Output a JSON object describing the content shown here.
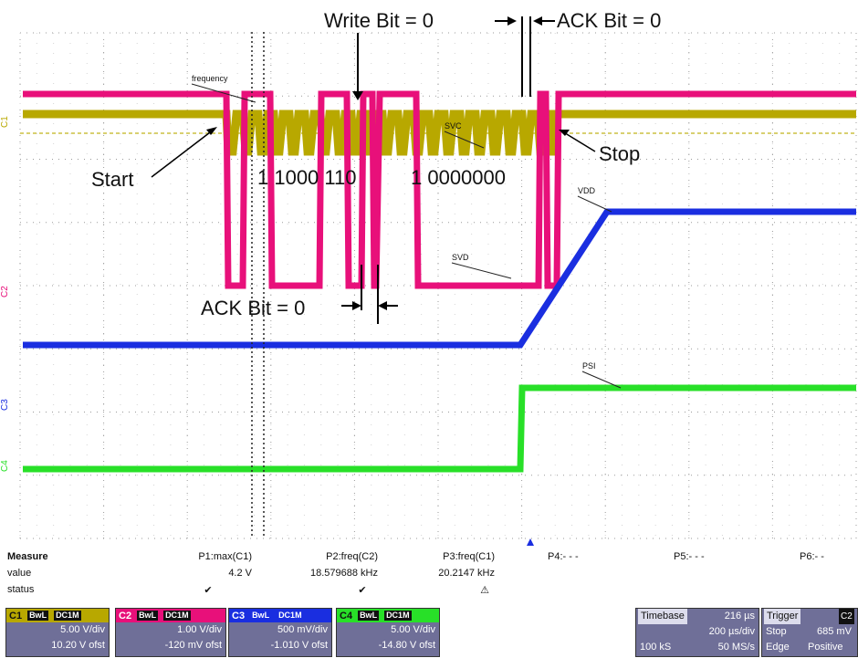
{
  "colors": {
    "c1": "#b8a800",
    "c2": "#e8107a",
    "c3": "#1a2ee0",
    "c4": "#28e028",
    "grid": "#9a9a9a",
    "panel": "#6f6f98"
  },
  "annotations": {
    "write_bit": "Write Bit = 0",
    "ack_bit_top": "ACK Bit = 0",
    "ack_bit_mid": "ACK Bit = 0",
    "start": "Start",
    "stop": "Stop",
    "address_bits": "1 1000 110",
    "data_bits": "1 0000000",
    "frequency": "frequency",
    "svc": "SVC",
    "svd": "SVD",
    "vdd": "VDD",
    "psi": "PSI"
  },
  "channel_markers": {
    "c1": "C1",
    "c2": "C2",
    "c3": "C3",
    "c4": "C4"
  },
  "measure": {
    "title": "Measure",
    "row_value": "value",
    "row_status": "status",
    "columns": [
      {
        "name": "P1:max(C1)",
        "value": "4.2 V",
        "status": "✔"
      },
      {
        "name": "P2:freq(C2)",
        "value": "18.579688 kHz",
        "status": "✔"
      },
      {
        "name": "P3:freq(C1)",
        "value": "20.2147 kHz",
        "status": "⚠"
      },
      {
        "name": "P4:- - -",
        "value": "",
        "status": ""
      },
      {
        "name": "P5:- - -",
        "value": "",
        "status": ""
      },
      {
        "name": "P6:- -",
        "value": "",
        "status": ""
      }
    ]
  },
  "channels": [
    {
      "label": "C1",
      "tag1": "BwL",
      "tag2": "DC1M",
      "vdiv": "5.00 V/div",
      "ofst": "10.20 V ofst"
    },
    {
      "label": "C2",
      "tag1": "BwL",
      "tag2": "DC1M",
      "vdiv": "1.00 V/div",
      "ofst": "-120 mV ofst"
    },
    {
      "label": "C3",
      "tag1": "BwL",
      "tag2": "DC1M",
      "vdiv": "500 mV/div",
      "ofst": "-1.010 V ofst"
    },
    {
      "label": "C4",
      "tag1": "BwL",
      "tag2": "DC1M",
      "vdiv": "5.00 V/div",
      "ofst": "-14.80 V ofst"
    }
  ],
  "timebase": {
    "label": "Timebase",
    "delay": "216 µs",
    "tdiv": "200 µs/div",
    "samples": "100 kS",
    "rate": "50 MS/s"
  },
  "trigger": {
    "label": "Trigger",
    "source": "C2",
    "mode": "Stop",
    "level": "685 mV",
    "type": "Edge",
    "slope": "Positive"
  }
}
